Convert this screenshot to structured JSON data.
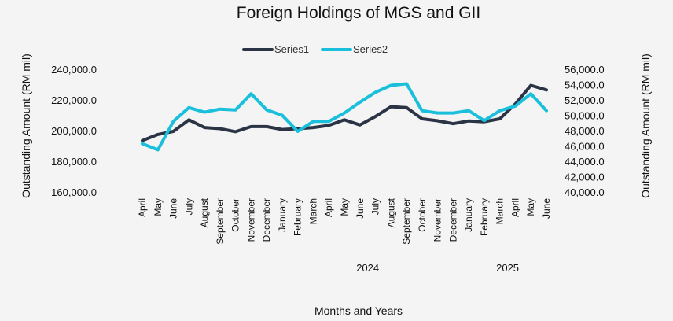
{
  "chart_data": {
    "type": "line",
    "title": "Foreign Holdings of MGS and GII",
    "xlabel": "Months and Years",
    "ylabel_left": "Outstanding Amount (RM mil)",
    "ylabel_right": "Outstanding Amount (RM mil)",
    "legend_position": "top-center",
    "grid": false,
    "categories": [
      "April",
      "May",
      "June",
      "July",
      "August",
      "September",
      "October",
      "November",
      "December",
      "January",
      "February",
      "March",
      "April",
      "May",
      "June",
      "July",
      "August",
      "September",
      "October",
      "November",
      "December",
      "January",
      "February",
      "March",
      "April",
      "May",
      "June"
    ],
    "year_labels": [
      {
        "label": "2024",
        "start_index": 9,
        "end_index": 20
      },
      {
        "label": "2025",
        "start_index": 21,
        "end_index": 26
      }
    ],
    "yticks_left": [
      "160,000.0",
      "180,000.0",
      "200,000.0",
      "220,000.0",
      "240,000.0"
    ],
    "yticks_right": [
      "40,000.0",
      "42,000.0",
      "44,000.0",
      "46,000.0",
      "48,000.0",
      "50,000.0",
      "52,000.0",
      "54,000.0",
      "56,000.0"
    ],
    "ylim_left": [
      160000,
      240000
    ],
    "ylim_right": [
      40000,
      56000
    ],
    "series": [
      {
        "name": "Series1",
        "axis": "left",
        "color": "#2b3445",
        "values": [
          193500,
          197500,
          199500,
          207000,
          202000,
          201300,
          199300,
          202600,
          202600,
          200700,
          201300,
          202000,
          203400,
          207000,
          203700,
          209200,
          215600,
          215000,
          207700,
          206400,
          204500,
          206300,
          205800,
          207700,
          217400,
          229500,
          226500
        ]
      },
      {
        "name": "Series2",
        "axis": "right",
        "color": "#1abfdc",
        "values": [
          46300,
          45500,
          49200,
          51000,
          50400,
          50800,
          50700,
          52800,
          50700,
          50000,
          47900,
          49200,
          49200,
          50300,
          51700,
          53000,
          53900,
          54100,
          50600,
          50300,
          50300,
          50600,
          49300,
          50600,
          51200,
          52800,
          50600
        ]
      }
    ]
  }
}
